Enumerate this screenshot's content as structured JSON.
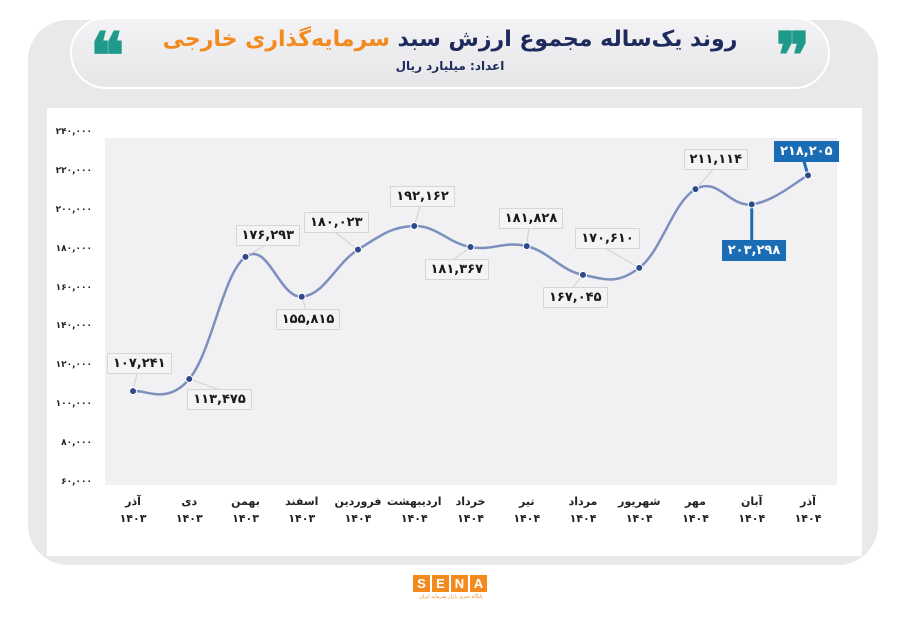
{
  "header": {
    "title_main": "روند یک‌ساله مجموع ارزش سبد",
    "title_highlight": "سرمایه‌گذاری خارجی",
    "subtitle": "اعداد: میلیارد ریال",
    "quote_left": "❝",
    "quote_right": "❞"
  },
  "colors": {
    "accent_teal": "#1f9a8a",
    "accent_orange": "#f28a1e",
    "title_navy": "#1d2a5c",
    "line": "#7d8fbf",
    "marker": "#2d4a8a",
    "highlight_label": "#1a6db5"
  },
  "logo": {
    "letters": [
      "S",
      "E",
      "N",
      "A"
    ],
    "tagline": "پایگاه خبری بازار سرمایه ایران"
  },
  "y_ticks": [
    "۲۴۰,۰۰۰",
    "۲۲۰,۰۰۰",
    "۲۰۰,۰۰۰",
    "۱۸۰,۰۰۰",
    "۱۶۰,۰۰۰",
    "۱۴۰,۰۰۰",
    "۱۲۰,۰۰۰",
    "۱۰۰,۰۰۰",
    "۸۰,۰۰۰",
    "۶۰,۰۰۰"
  ],
  "x_labels": [
    {
      "month": "آذر",
      "year": "۱۴۰۳"
    },
    {
      "month": "دی",
      "year": "۱۴۰۳"
    },
    {
      "month": "بهمن",
      "year": "۱۴۰۳"
    },
    {
      "month": "اسفند",
      "year": "۱۴۰۳"
    },
    {
      "month": "فروردین",
      "year": "۱۴۰۴"
    },
    {
      "month": "اردیبهشت",
      "year": "۱۴۰۴"
    },
    {
      "month": "خرداد",
      "year": "۱۴۰۴"
    },
    {
      "month": "تیر",
      "year": "۱۴۰۴"
    },
    {
      "month": "مرداد",
      "year": "۱۴۰۴"
    },
    {
      "month": "شهریور",
      "year": "۱۴۰۴"
    },
    {
      "month": "مهر",
      "year": "۱۴۰۴"
    },
    {
      "month": "آبان",
      "year": "۱۴۰۴"
    },
    {
      "month": "آذر",
      "year": "۱۴۰۴"
    }
  ],
  "data_labels": [
    "۱۰۷,۲۴۱",
    "۱۱۳,۴۷۵",
    "۱۷۶,۲۹۳",
    "۱۵۵,۸۱۵",
    "۱۸۰,۰۲۳",
    "۱۹۲,۱۶۲",
    "۱۸۱,۳۶۷",
    "۱۸۱,۸۲۸",
    "۱۶۷,۰۴۵",
    "۱۷۰,۶۱۰",
    "۲۱۱,۱۱۴",
    "۲۰۳,۲۹۸",
    "۲۱۸,۲۰۵"
  ],
  "chart_data": {
    "type": "line",
    "title": "روند یک‌ساله مجموع ارزش سبد سرمایه‌گذاری خارجی",
    "subtitle": "اعداد: میلیارد ریال",
    "xlabel": "",
    "ylabel": "میلیارد ریال",
    "categories": [
      "آذر ۱۴۰۳",
      "دی ۱۴۰۳",
      "بهمن ۱۴۰۳",
      "اسفند ۱۴۰۳",
      "فروردین ۱۴۰۴",
      "اردیبهشت ۱۴۰۴",
      "خرداد ۱۴۰۴",
      "تیر ۱۴۰۴",
      "مرداد ۱۴۰۴",
      "شهریور ۱۴۰۴",
      "مهر ۱۴۰۴",
      "آبان ۱۴۰۴",
      "آذر ۱۴۰۴"
    ],
    "series": [
      {
        "name": "مجموع ارزش سبد سرمایه‌گذاری خارجی",
        "values": [
          107241,
          113475,
          176293,
          155815,
          180023,
          192162,
          181367,
          181828,
          167045,
          170610,
          211114,
          203298,
          218205
        ]
      }
    ],
    "ylim": [
      60000,
      240000
    ],
    "yticks": [
      60000,
      80000,
      100000,
      120000,
      140000,
      160000,
      180000,
      200000,
      220000,
      240000
    ],
    "grid": false,
    "smooth": true,
    "highlighted_points": [
      11,
      12
    ],
    "legend": "none"
  }
}
